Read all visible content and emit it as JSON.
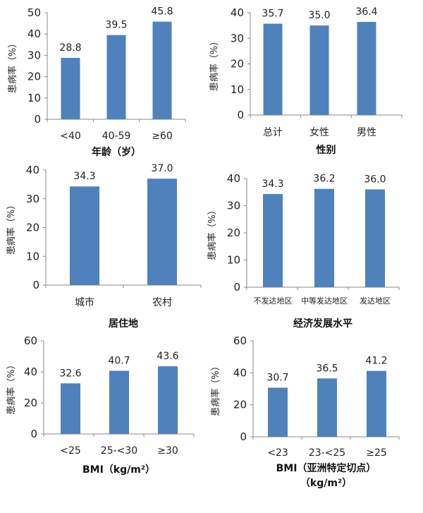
{
  "chart_data": [
    {
      "type": "bar",
      "title": "",
      "xlabel": "年龄（岁）",
      "ylabel": "患病率（%）",
      "categories": [
        "<40",
        "40-59",
        "≥60"
      ],
      "values": [
        28.8,
        39.5,
        45.8
      ],
      "value_labels": [
        "28.8",
        "39.5",
        "45.8"
      ],
      "ylim": [
        0,
        50
      ],
      "yticks": [
        0,
        10,
        20,
        30,
        40,
        50
      ],
      "color": "#4f81bd"
    },
    {
      "type": "bar",
      "title": "",
      "xlabel": "性别",
      "ylabel": "患病率（%）",
      "categories": [
        "总计",
        "女性",
        "男性"
      ],
      "values": [
        35.7,
        35.0,
        36.4
      ],
      "value_labels": [
        "35.7",
        "35.0",
        "36.4"
      ],
      "ylim": [
        0,
        40
      ],
      "yticks": [
        0,
        10,
        20,
        30,
        40
      ],
      "color": "#4f81bd"
    },
    {
      "type": "bar",
      "title": "",
      "xlabel": "居住地",
      "ylabel": "患病率（%）",
      "categories": [
        "城市",
        "农村"
      ],
      "values": [
        34.3,
        37.0
      ],
      "value_labels": [
        "34.3",
        "37.0"
      ],
      "ylim": [
        0,
        40
      ],
      "yticks": [
        0,
        10,
        20,
        30,
        40
      ],
      "color": "#4f81bd"
    },
    {
      "type": "bar",
      "title": "",
      "xlabel": "经济发展水平",
      "ylabel": "患病率（%）",
      "categories": [
        "不发达地区",
        "中等发达地区",
        "发达地区"
      ],
      "values": [
        34.3,
        36.2,
        36.0
      ],
      "value_labels": [
        "34.3",
        "36.2",
        "36.0"
      ],
      "ylim": [
        0,
        40
      ],
      "yticks": [
        0,
        10,
        20,
        30,
        40
      ],
      "color": "#4f81bd"
    },
    {
      "type": "bar",
      "title": "",
      "xlabel": "BMI（kg/m²）",
      "ylabel": "患病率（%）",
      "categories": [
        "<25",
        "25-<30",
        "≥30"
      ],
      "values": [
        32.6,
        40.7,
        43.6
      ],
      "value_labels": [
        "32.6",
        "40.7",
        "43.6"
      ],
      "ylim": [
        0,
        60
      ],
      "yticks": [
        0,
        20,
        40,
        60
      ],
      "color": "#4f81bd"
    },
    {
      "type": "bar",
      "title": "",
      "xlabel": "BMI（亚洲特定切点）",
      "xlabel2": "（kg/m²）",
      "ylabel": "患病率（%）",
      "categories": [
        "<23",
        "23-<25",
        "≥25"
      ],
      "values": [
        30.7,
        36.5,
        41.2
      ],
      "value_labels": [
        "30.7",
        "36.5",
        "41.2"
      ],
      "ylim": [
        0,
        60
      ],
      "yticks": [
        0,
        20,
        40,
        60
      ],
      "color": "#4f81bd"
    }
  ]
}
